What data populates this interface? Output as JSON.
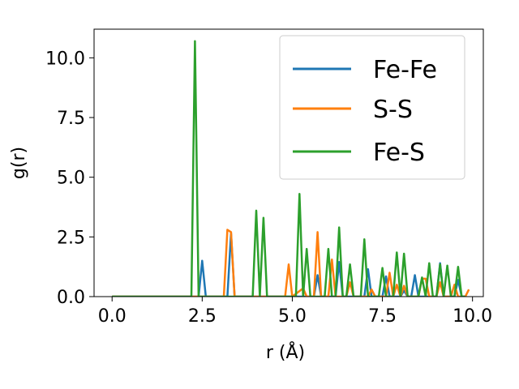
{
  "chart_data": {
    "type": "line",
    "title": "",
    "xlabel": "r (Å)",
    "ylabel": "g(r)",
    "xlim": [
      -0.5,
      10.3
    ],
    "ylim": [
      0,
      11.2
    ],
    "xticks": [
      0.0,
      2.5,
      5.0,
      7.5,
      10.0
    ],
    "xtick_labels": [
      "0.0",
      "2.5",
      "5.0",
      "7.5",
      "10.0"
    ],
    "yticks": [
      0.0,
      2.5,
      5.0,
      7.5,
      10.0
    ],
    "ytick_labels": [
      "0.0",
      "2.5",
      "5.0",
      "7.5",
      "10.0"
    ],
    "grid": false,
    "legend_position": "top-right",
    "series": [
      {
        "name": "Fe-Fe",
        "color": "#1f77b4",
        "x": [
          0.0,
          2.0,
          2.4,
          2.5,
          2.6,
          3.2,
          3.3,
          3.4,
          5.6,
          5.7,
          5.8,
          6.2,
          6.3,
          6.4,
          7.0,
          7.1,
          7.2,
          7.5,
          7.6,
          7.7,
          8.0,
          8.1,
          8.2,
          8.3,
          8.4,
          8.5,
          9.0,
          9.1,
          9.2,
          9.5,
          9.6,
          9.7,
          9.8
        ],
        "y": [
          0.0,
          0.0,
          0.0,
          1.5,
          0.0,
          0.0,
          2.65,
          0.0,
          0.0,
          0.9,
          0.0,
          0.0,
          1.45,
          0.0,
          0.0,
          1.15,
          0.0,
          0.0,
          0.85,
          0.0,
          0.0,
          0.25,
          0.0,
          0.0,
          0.9,
          0.0,
          0.0,
          1.4,
          0.0,
          0.0,
          0.7,
          0.0,
          0.0
        ]
      },
      {
        "name": "S-S",
        "color": "#ff7f0e",
        "x": [
          0.0,
          3.0,
          3.1,
          3.2,
          3.3,
          3.4,
          4.8,
          4.9,
          5.0,
          5.3,
          5.4,
          5.5,
          5.6,
          5.7,
          5.8,
          6.0,
          6.1,
          6.2,
          6.5,
          6.6,
          6.7,
          7.1,
          7.2,
          7.3,
          7.6,
          7.7,
          7.8,
          7.9,
          8.0,
          8.1,
          8.2,
          8.3,
          8.5,
          8.6,
          8.7,
          8.8,
          8.9,
          9.0,
          9.1,
          9.2,
          9.4,
          9.5,
          9.6,
          9.7,
          9.8,
          9.9
        ],
        "y": [
          0.0,
          0.0,
          0.0,
          2.8,
          2.7,
          0.0,
          0.0,
          1.35,
          0.0,
          0.35,
          0.0,
          0.0,
          0.0,
          2.7,
          0.0,
          0.0,
          1.55,
          0.0,
          0.0,
          0.6,
          0.0,
          0.0,
          0.3,
          0.0,
          0.0,
          1.0,
          0.0,
          0.5,
          0.0,
          0.45,
          0.0,
          0.0,
          0.0,
          0.75,
          0.75,
          0.0,
          0.0,
          0.0,
          0.6,
          0.0,
          0.0,
          0.5,
          0.0,
          0.0,
          0.0,
          0.3
        ]
      },
      {
        "name": "Fe-S",
        "color": "#2ca02c",
        "x": [
          0.0,
          2.1,
          2.2,
          2.3,
          2.4,
          3.5,
          3.9,
          4.0,
          4.1,
          4.2,
          4.3,
          5.1,
          5.2,
          5.3,
          5.4,
          5.5,
          5.6,
          5.9,
          6.0,
          6.1,
          6.2,
          6.3,
          6.4,
          6.5,
          6.6,
          6.7,
          6.9,
          7.0,
          7.1,
          7.4,
          7.5,
          7.6,
          7.8,
          7.9,
          8.0,
          8.1,
          8.2,
          8.3,
          8.5,
          8.6,
          8.7,
          8.8,
          8.9,
          9.0,
          9.1,
          9.2,
          9.3,
          9.4,
          9.5,
          9.6,
          9.7,
          9.8
        ],
        "y": [
          0.0,
          0.0,
          0.0,
          10.7,
          0.0,
          0.0,
          0.0,
          3.6,
          0.0,
          3.3,
          0.0,
          0.0,
          4.3,
          0.0,
          2.0,
          0.0,
          0.0,
          0.0,
          2.0,
          0.0,
          0.0,
          2.9,
          0.0,
          0.0,
          1.35,
          0.0,
          0.0,
          2.4,
          0.0,
          0.0,
          1.2,
          0.0,
          0.0,
          1.85,
          0.0,
          1.8,
          0.0,
          0.0,
          0.0,
          0.8,
          0.0,
          1.4,
          0.0,
          0.0,
          1.35,
          0.0,
          1.3,
          0.0,
          0.0,
          1.25,
          0.0,
          0.0
        ]
      }
    ]
  }
}
